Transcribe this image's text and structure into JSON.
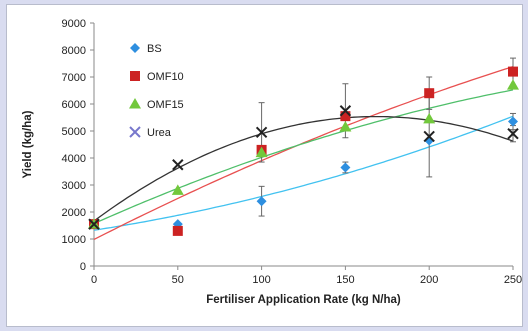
{
  "chart_data": {
    "type": "scatter",
    "xlabel": "Fertiliser Application Rate (kg N/ha)",
    "ylabel": "Yield (kg/ha)",
    "xlim": [
      0,
      250
    ],
    "ylim": [
      0,
      9000
    ],
    "xticks": [
      "0",
      "50",
      "100",
      "150",
      "200",
      "250"
    ],
    "yticks": [
      "0",
      "1000",
      "2000",
      "3000",
      "4000",
      "5000",
      "6000",
      "7000",
      "8000",
      "9000"
    ],
    "grid": false,
    "legend_position": "top-left",
    "x": [
      0,
      50,
      100,
      150,
      200,
      250
    ],
    "series": [
      {
        "name": "BS",
        "marker": "diamond",
        "color": "#2e8fe0",
        "trend_color": "#42c2f0",
        "values": [
          1550,
          1550,
          2400,
          3650,
          4650,
          5350
        ],
        "error": [
          0,
          0,
          550,
          200,
          0,
          300
        ]
      },
      {
        "name": "OMF10",
        "marker": "square",
        "color": "#cc2222",
        "trend_color": "#e85050",
        "values": [
          1550,
          1300,
          4300,
          5550,
          6400,
          7200
        ],
        "error": [
          0,
          0,
          0,
          0,
          600,
          500
        ]
      },
      {
        "name": "OMF15",
        "marker": "triangle",
        "color": "#72c83c",
        "trend_color": "#4fbf6a",
        "values": [
          1550,
          2800,
          4200,
          5150,
          5450,
          6700
        ],
        "error": [
          0,
          0,
          0,
          0,
          0,
          0
        ]
      },
      {
        "name": "Urea",
        "marker": "x",
        "color": "#222222",
        "trend_color": "#333333",
        "values": [
          1550,
          3750,
          4950,
          5750,
          4800,
          4900
        ],
        "error": [
          0,
          0,
          1100,
          1000,
          1500,
          300
        ]
      }
    ]
  }
}
